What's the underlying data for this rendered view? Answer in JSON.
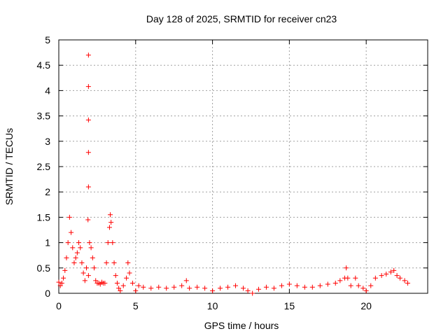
{
  "chart_data": {
    "type": "scatter",
    "title": "Day 128 of 2025, SRMTID for receiver cn23",
    "xlabel": "GPS time / hours",
    "ylabel": "SRMTID / TECUs",
    "xlim": [
      0,
      24
    ],
    "ylim": [
      0,
      5
    ],
    "x_ticks": [
      "0",
      "5",
      "10",
      "15",
      "20"
    ],
    "y_ticks": [
      "0",
      "0.5",
      "1",
      "1.5",
      "2",
      "2.5",
      "3",
      "3.5",
      "4",
      "4.5",
      "5"
    ],
    "marker": "plus",
    "grid": true,
    "colors": {
      "series": "#ff0000",
      "grid": "#a0a0a0",
      "axes": "#000000"
    },
    "series": [
      {
        "name": "SRMTID",
        "x": [
          0.0,
          0.1,
          0.2,
          0.3,
          0.4,
          0.5,
          0.6,
          0.7,
          0.8,
          0.9,
          1.0,
          1.1,
          1.2,
          1.3,
          1.4,
          1.5,
          1.6,
          1.7,
          1.8,
          1.9,
          1.93,
          1.93,
          1.93,
          1.93,
          1.93,
          1.93,
          2.0,
          2.1,
          2.2,
          2.3,
          2.4,
          2.5,
          2.6,
          2.7,
          2.8,
          2.9,
          3.0,
          3.1,
          3.2,
          3.3,
          3.35,
          3.4,
          3.5,
          3.6,
          3.7,
          3.8,
          3.9,
          4.0,
          4.2,
          4.4,
          4.5,
          4.6,
          4.8,
          5.0,
          5.2,
          5.5,
          6.0,
          6.5,
          7.0,
          7.5,
          8.0,
          8.3,
          8.5,
          9.0,
          9.5,
          10.0,
          10.5,
          11.0,
          11.5,
          12.0,
          12.3,
          12.6,
          13.0,
          13.5,
          14.0,
          14.5,
          15.0,
          15.5,
          16.0,
          16.5,
          17.0,
          17.5,
          18.0,
          18.3,
          18.6,
          18.7,
          18.8,
          19.0,
          19.3,
          19.5,
          19.8,
          20.0,
          20.3,
          20.6,
          21.0,
          21.3,
          21.6,
          21.8,
          22.0,
          22.2,
          22.5,
          22.7
        ],
        "y": [
          0.22,
          0.15,
          0.2,
          0.3,
          0.45,
          0.7,
          1.0,
          1.5,
          1.2,
          0.9,
          0.6,
          0.7,
          0.8,
          1.0,
          0.9,
          0.6,
          0.4,
          0.25,
          0.5,
          1.45,
          2.1,
          2.78,
          3.42,
          4.08,
          4.7,
          0.35,
          1.0,
          0.9,
          0.7,
          0.5,
          0.25,
          0.2,
          0.2,
          0.18,
          0.22,
          0.2,
          0.2,
          0.6,
          1.0,
          1.3,
          1.55,
          1.4,
          1.0,
          0.6,
          0.35,
          0.2,
          0.1,
          0.05,
          0.15,
          0.3,
          0.6,
          0.4,
          0.2,
          0.05,
          0.15,
          0.12,
          0.1,
          0.12,
          0.1,
          0.12,
          0.15,
          0.25,
          0.1,
          0.12,
          0.1,
          0.05,
          0.1,
          0.12,
          0.15,
          0.1,
          0.05,
          0.0,
          0.08,
          0.12,
          0.1,
          0.15,
          0.18,
          0.15,
          0.12,
          0.12,
          0.15,
          0.18,
          0.2,
          0.25,
          0.3,
          0.5,
          0.3,
          0.15,
          0.3,
          0.15,
          0.1,
          0.05,
          0.15,
          0.3,
          0.35,
          0.38,
          0.42,
          0.45,
          0.35,
          0.3,
          0.25,
          0.2
        ]
      }
    ]
  }
}
